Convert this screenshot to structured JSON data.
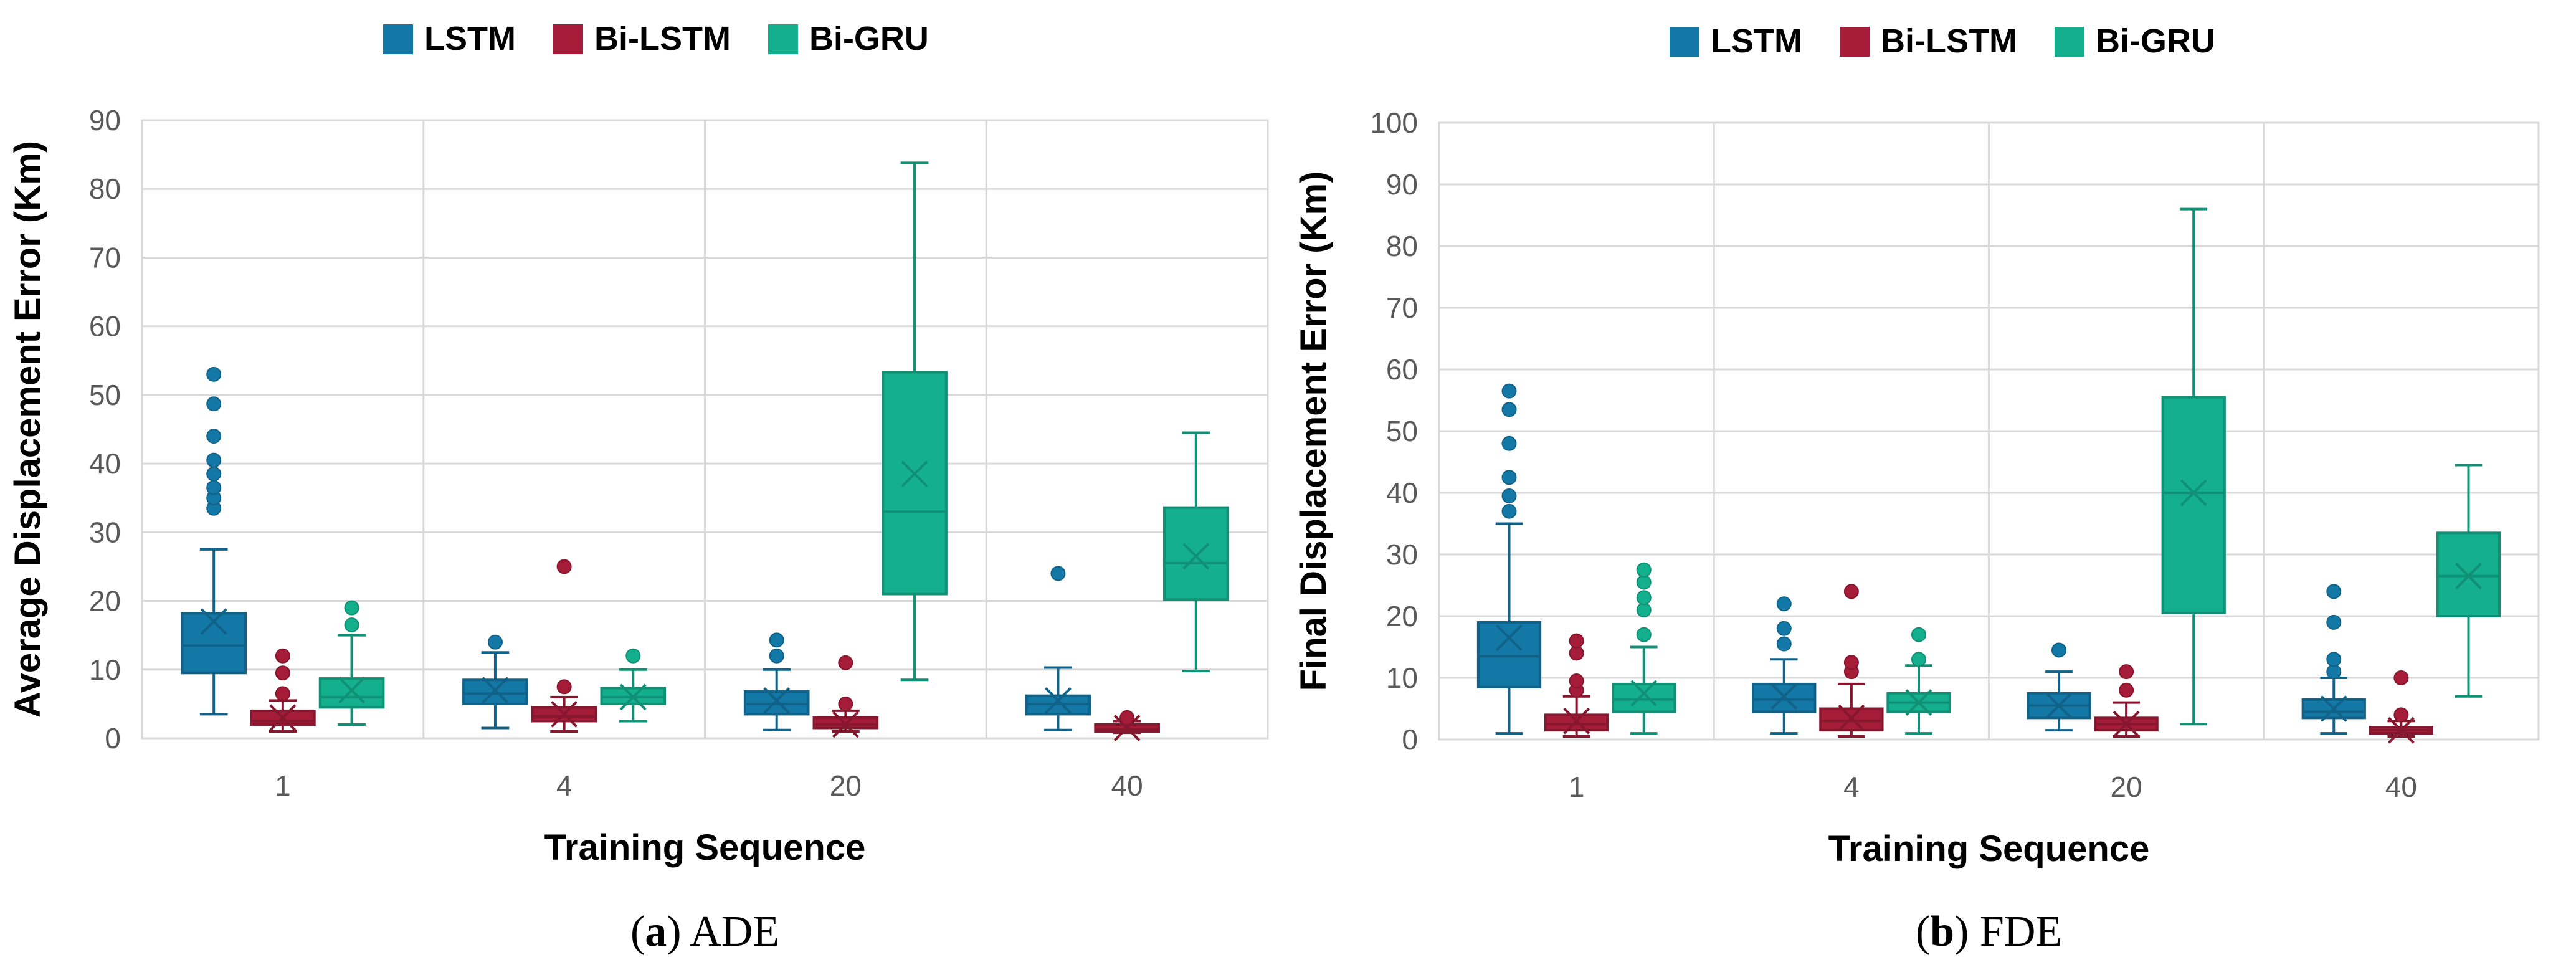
{
  "colors": {
    "LSTM": "#1478a6",
    "Bi-LSTM": "#a51c38",
    "Bi-GRU": "#14b08e",
    "grid": "#d9d9d9"
  },
  "chart_data": [
    {
      "type": "boxplot",
      "id": "ade",
      "caption_letter": "a",
      "caption_text": " ADE",
      "xlabel": "Training Sequence",
      "ylabel": "Average Displacement Error (Km)",
      "ylim": [
        0,
        90
      ],
      "yticks": [
        0,
        10,
        20,
        30,
        40,
        50,
        60,
        70,
        80,
        90
      ],
      "categories": [
        "1",
        "4",
        "20",
        "40"
      ],
      "legend": [
        "LSTM",
        "Bi-LSTM",
        "Bi-GRU"
      ],
      "series": [
        {
          "name": "LSTM",
          "boxes": [
            {
              "min": 3.5,
              "q1": 9.5,
              "median": 13.5,
              "q3": 18.2,
              "max": 27.5,
              "mean": 17,
              "outliers": [
                33.5,
                35,
                36.5,
                38.5,
                40.5,
                44,
                48.7,
                53
              ]
            },
            {
              "min": 1.5,
              "q1": 5,
              "median": 6.5,
              "q3": 8.5,
              "max": 12.5,
              "mean": 7,
              "outliers": [
                14
              ]
            },
            {
              "min": 1.2,
              "q1": 3.5,
              "median": 5,
              "q3": 6.8,
              "max": 10,
              "mean": 5.5,
              "outliers": [
                12,
                14.3
              ]
            },
            {
              "min": 1.2,
              "q1": 3.5,
              "median": 5,
              "q3": 6.2,
              "max": 10.3,
              "mean": 5.5,
              "outliers": [
                24
              ]
            }
          ]
        },
        {
          "name": "Bi-LSTM",
          "boxes": [
            {
              "min": 1,
              "q1": 2,
              "median": 2.5,
              "q3": 4,
              "max": 5.5,
              "mean": 3,
              "outliers": [
                6.5,
                9.5,
                12
              ]
            },
            {
              "min": 1,
              "q1": 2.5,
              "median": 3.2,
              "q3": 4.5,
              "max": 6,
              "mean": 3.5,
              "outliers": [
                7.5,
                25
              ]
            },
            {
              "min": 1,
              "q1": 1.5,
              "median": 2,
              "q3": 3,
              "max": 4,
              "mean": 2,
              "outliers": [
                5,
                11
              ]
            },
            {
              "min": 0.8,
              "q1": 1,
              "median": 1.3,
              "q3": 2,
              "max": 2.5,
              "mean": 1.5,
              "outliers": [
                3
              ]
            }
          ]
        },
        {
          "name": "Bi-GRU",
          "boxes": [
            {
              "min": 2,
              "q1": 4.5,
              "median": 6,
              "q3": 8.7,
              "max": 15,
              "mean": 7,
              "outliers": [
                16.5,
                19
              ]
            },
            {
              "min": 2.5,
              "q1": 5,
              "median": 6,
              "q3": 7.3,
              "max": 10,
              "mean": 6,
              "outliers": [
                12
              ]
            },
            {
              "min": 8.5,
              "q1": 21,
              "median": 33,
              "q3": 53.3,
              "max": 83.8,
              "mean": 38.5,
              "outliers": []
            },
            {
              "min": 9.8,
              "q1": 20.2,
              "median": 25.5,
              "q3": 33.6,
              "max": 44.5,
              "mean": 26.5,
              "outliers": []
            }
          ]
        }
      ]
    },
    {
      "type": "boxplot",
      "id": "fde",
      "caption_letter": "b",
      "caption_text": " FDE",
      "xlabel": "Training Sequence",
      "ylabel": "Final Displacement Error (Km)",
      "ylim": [
        0,
        100
      ],
      "yticks": [
        0,
        10,
        20,
        30,
        40,
        50,
        60,
        70,
        80,
        90,
        100
      ],
      "categories": [
        "1",
        "4",
        "20",
        "40"
      ],
      "legend": [
        "LSTM",
        "Bi-LSTM",
        "Bi-GRU"
      ],
      "series": [
        {
          "name": "LSTM",
          "boxes": [
            {
              "min": 1,
              "q1": 8.5,
              "median": 13.5,
              "q3": 19,
              "max": 35,
              "mean": 16.5,
              "outliers": [
                37,
                39.5,
                42.5,
                48,
                53.5,
                56.5
              ]
            },
            {
              "min": 1,
              "q1": 4.5,
              "median": 6.5,
              "q3": 9,
              "max": 13,
              "mean": 7,
              "outliers": [
                15.5,
                18,
                22
              ]
            },
            {
              "min": 1.5,
              "q1": 3.5,
              "median": 5.5,
              "q3": 7.5,
              "max": 11,
              "mean": 5.5,
              "outliers": [
                14.5
              ]
            },
            {
              "min": 1,
              "q1": 3.5,
              "median": 4.5,
              "q3": 6.5,
              "max": 10,
              "mean": 5,
              "outliers": [
                11,
                13,
                19,
                24
              ]
            }
          ]
        },
        {
          "name": "Bi-LSTM",
          "boxes": [
            {
              "min": 0.5,
              "q1": 1.5,
              "median": 2.5,
              "q3": 4,
              "max": 7,
              "mean": 3,
              "outliers": [
                8,
                9.5,
                14,
                16
              ]
            },
            {
              "min": 0.5,
              "q1": 1.5,
              "median": 3,
              "q3": 5,
              "max": 9,
              "mean": 3.5,
              "outliers": [
                11,
                12.5,
                24
              ]
            },
            {
              "min": 0.5,
              "q1": 1.5,
              "median": 2.5,
              "q3": 3.5,
              "max": 6,
              "mean": 2.5,
              "outliers": [
                8,
                11
              ]
            },
            {
              "min": 0.5,
              "q1": 1,
              "median": 1.5,
              "q3": 2,
              "max": 3,
              "mean": 1.5,
              "outliers": [
                4,
                10
              ]
            }
          ]
        },
        {
          "name": "Bi-GRU",
          "boxes": [
            {
              "min": 1,
              "q1": 4.5,
              "median": 6.5,
              "q3": 9,
              "max": 15,
              "mean": 7.5,
              "outliers": [
                17,
                21,
                23,
                25.5,
                27.5
              ]
            },
            {
              "min": 1,
              "q1": 4.5,
              "median": 6,
              "q3": 7.5,
              "max": 12,
              "mean": 6,
              "outliers": [
                13,
                17
              ]
            },
            {
              "min": 2.5,
              "q1": 20.5,
              "median": 40,
              "q3": 55.5,
              "max": 86,
              "mean": 40,
              "outliers": []
            },
            {
              "min": 7,
              "q1": 20,
              "median": 26.5,
              "q3": 33.5,
              "max": 44.5,
              "mean": 26.5,
              "outliers": []
            }
          ]
        }
      ]
    }
  ]
}
